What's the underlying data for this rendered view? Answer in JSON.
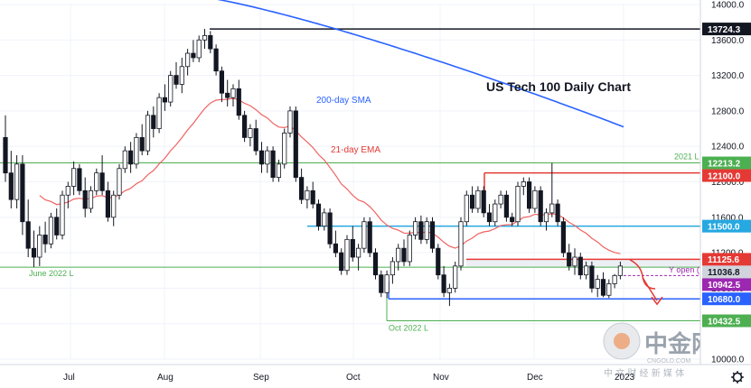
{
  "chart_data": {
    "type": "candlestick",
    "title": "US Tech 100 Daily Chart",
    "x_axis": {
      "month_labels": [
        "Jul",
        "Aug",
        "Sep",
        "Oct",
        "Nov",
        "Dec",
        "2023"
      ]
    },
    "y_axis": {
      "range": [
        10000,
        14000
      ],
      "tick_labels": [
        "14000.0",
        "13600.0",
        "13200.0",
        "12800.0",
        "12400.0",
        "12000.0",
        "11600.0",
        "11200.0",
        "10800.0",
        "10400.0",
        "10000.0"
      ]
    },
    "ohlc": [
      {
        "o": 12500,
        "h": 12750,
        "l": 12000,
        "c": 12100
      },
      {
        "o": 12100,
        "h": 12350,
        "l": 11700,
        "c": 11800
      },
      {
        "o": 11800,
        "h": 12300,
        "l": 11700,
        "c": 12200
      },
      {
        "o": 12200,
        "h": 12300,
        "l": 11400,
        "c": 11550
      },
      {
        "o": 11550,
        "h": 11800,
        "l": 11150,
        "c": 11250
      },
      {
        "o": 11250,
        "h": 11450,
        "l": 11037,
        "c": 11150
      },
      {
        "o": 11150,
        "h": 11500,
        "l": 11050,
        "c": 11400
      },
      {
        "o": 11400,
        "h": 11550,
        "l": 11200,
        "c": 11300
      },
      {
        "o": 11300,
        "h": 11650,
        "l": 11250,
        "c": 11600
      },
      {
        "o": 11600,
        "h": 11700,
        "l": 11350,
        "c": 11400
      },
      {
        "o": 11400,
        "h": 11900,
        "l": 11350,
        "c": 11850
      },
      {
        "o": 11850,
        "h": 12000,
        "l": 11700,
        "c": 11950
      },
      {
        "o": 11950,
        "h": 12230,
        "l": 11850,
        "c": 12150
      },
      {
        "o": 12150,
        "h": 12200,
        "l": 11850,
        "c": 11900
      },
      {
        "o": 11900,
        "h": 12050,
        "l": 11600,
        "c": 11700
      },
      {
        "o": 11700,
        "h": 11950,
        "l": 11650,
        "c": 11900
      },
      {
        "o": 11900,
        "h": 12150,
        "l": 11850,
        "c": 12100
      },
      {
        "o": 12100,
        "h": 12300,
        "l": 11850,
        "c": 11900
      },
      {
        "o": 11900,
        "h": 12000,
        "l": 11550,
        "c": 11600
      },
      {
        "o": 11600,
        "h": 11900,
        "l": 11500,
        "c": 11850
      },
      {
        "o": 11850,
        "h": 12200,
        "l": 11800,
        "c": 12150
      },
      {
        "o": 12150,
        "h": 12400,
        "l": 12100,
        "c": 12350
      },
      {
        "o": 12350,
        "h": 12450,
        "l": 12100,
        "c": 12200
      },
      {
        "o": 12200,
        "h": 12550,
        "l": 12150,
        "c": 12500
      },
      {
        "o": 12500,
        "h": 12650,
        "l": 12300,
        "c": 12350
      },
      {
        "o": 12350,
        "h": 12800,
        "l": 12300,
        "c": 12750
      },
      {
        "o": 12750,
        "h": 12850,
        "l": 12500,
        "c": 12600
      },
      {
        "o": 12600,
        "h": 13000,
        "l": 12550,
        "c": 12950
      },
      {
        "o": 12950,
        "h": 13100,
        "l": 12800,
        "c": 12900
      },
      {
        "o": 12900,
        "h": 13250,
        "l": 12850,
        "c": 13200
      },
      {
        "o": 13200,
        "h": 13350,
        "l": 13050,
        "c": 13100
      },
      {
        "o": 13100,
        "h": 13400,
        "l": 13000,
        "c": 13300
      },
      {
        "o": 13300,
        "h": 13500,
        "l": 13200,
        "c": 13450
      },
      {
        "o": 13450,
        "h": 13600,
        "l": 13350,
        "c": 13400
      },
      {
        "o": 13400,
        "h": 13650,
        "l": 13350,
        "c": 13600
      },
      {
        "o": 13600,
        "h": 13724,
        "l": 13500,
        "c": 13650
      },
      {
        "o": 13650,
        "h": 13700,
        "l": 13450,
        "c": 13500
      },
      {
        "o": 13500,
        "h": 13550,
        "l": 13200,
        "c": 13250
      },
      {
        "o": 13250,
        "h": 13300,
        "l": 12900,
        "c": 13000
      },
      {
        "o": 13000,
        "h": 13150,
        "l": 12850,
        "c": 12950
      },
      {
        "o": 12950,
        "h": 13100,
        "l": 12850,
        "c": 13050
      },
      {
        "o": 13050,
        "h": 13150,
        "l": 12700,
        "c": 12750
      },
      {
        "o": 12750,
        "h": 12800,
        "l": 12450,
        "c": 12500
      },
      {
        "o": 12500,
        "h": 12650,
        "l": 12400,
        "c": 12600
      },
      {
        "o": 12600,
        "h": 12700,
        "l": 12300,
        "c": 12350
      },
      {
        "o": 12350,
        "h": 12450,
        "l": 12100,
        "c": 12200
      },
      {
        "o": 12200,
        "h": 12400,
        "l": 12100,
        "c": 12350
      },
      {
        "o": 12350,
        "h": 12400,
        "l": 12000,
        "c": 12050
      },
      {
        "o": 12050,
        "h": 12250,
        "l": 12000,
        "c": 12200
      },
      {
        "o": 12200,
        "h": 12600,
        "l": 12150,
        "c": 12550
      },
      {
        "o": 12550,
        "h": 12850,
        "l": 12500,
        "c": 12800
      },
      {
        "o": 12800,
        "h": 12850,
        "l": 12000,
        "c": 12050
      },
      {
        "o": 12050,
        "h": 12150,
        "l": 11750,
        "c": 11800
      },
      {
        "o": 11800,
        "h": 11950,
        "l": 11700,
        "c": 11900
      },
      {
        "o": 11900,
        "h": 12000,
        "l": 11700,
        "c": 11750
      },
      {
        "o": 11750,
        "h": 11800,
        "l": 11450,
        "c": 11500
      },
      {
        "o": 11500,
        "h": 11700,
        "l": 11450,
        "c": 11650
      },
      {
        "o": 11650,
        "h": 11700,
        "l": 11250,
        "c": 11300
      },
      {
        "o": 11300,
        "h": 11450,
        "l": 11150,
        "c": 11200
      },
      {
        "o": 11200,
        "h": 11250,
        "l": 10950,
        "c": 11000
      },
      {
        "o": 11000,
        "h": 11400,
        "l": 10950,
        "c": 11350
      },
      {
        "o": 11350,
        "h": 11500,
        "l": 11100,
        "c": 11150
      },
      {
        "o": 11150,
        "h": 11300,
        "l": 11000,
        "c": 11250
      },
      {
        "o": 11250,
        "h": 11600,
        "l": 11200,
        "c": 11550
      },
      {
        "o": 11550,
        "h": 11600,
        "l": 11150,
        "c": 11200
      },
      {
        "o": 11200,
        "h": 11250,
        "l": 10900,
        "c": 10950
      },
      {
        "o": 10950,
        "h": 11000,
        "l": 10700,
        "c": 10750
      },
      {
        "o": 10750,
        "h": 11000,
        "l": 10690,
        "c": 10950
      },
      {
        "o": 10950,
        "h": 11150,
        "l": 10850,
        "c": 11100
      },
      {
        "o": 11100,
        "h": 11300,
        "l": 11000,
        "c": 11250
      },
      {
        "o": 11250,
        "h": 11350,
        "l": 11050,
        "c": 11100
      },
      {
        "o": 11100,
        "h": 11450,
        "l": 11050,
        "c": 11400
      },
      {
        "o": 11400,
        "h": 11600,
        "l": 11350,
        "c": 11550
      },
      {
        "o": 11550,
        "h": 11620,
        "l": 11300,
        "c": 11350
      },
      {
        "o": 11350,
        "h": 11600,
        "l": 11300,
        "c": 11550
      },
      {
        "o": 11550,
        "h": 11600,
        "l": 11200,
        "c": 11250
      },
      {
        "o": 11250,
        "h": 11300,
        "l": 10900,
        "c": 10950
      },
      {
        "o": 10950,
        "h": 11050,
        "l": 10700,
        "c": 10750
      },
      {
        "o": 10750,
        "h": 10850,
        "l": 10600,
        "c": 10800
      },
      {
        "o": 10800,
        "h": 11100,
        "l": 10750,
        "c": 11050
      },
      {
        "o": 11050,
        "h": 11600,
        "l": 11000,
        "c": 11550
      },
      {
        "o": 11550,
        "h": 11900,
        "l": 11500,
        "c": 11850
      },
      {
        "o": 11850,
        "h": 11950,
        "l": 11650,
        "c": 11700
      },
      {
        "o": 11700,
        "h": 11950,
        "l": 11650,
        "c": 11900
      },
      {
        "o": 11900,
        "h": 11950,
        "l": 11600,
        "c": 11650
      },
      {
        "o": 11650,
        "h": 11750,
        "l": 11500,
        "c": 11550
      },
      {
        "o": 11550,
        "h": 11800,
        "l": 11500,
        "c": 11750
      },
      {
        "o": 11750,
        "h": 11900,
        "l": 11700,
        "c": 11850
      },
      {
        "o": 11850,
        "h": 11900,
        "l": 11550,
        "c": 11600
      },
      {
        "o": 11600,
        "h": 11650,
        "l": 11500,
        "c": 11550
      },
      {
        "o": 11550,
        "h": 12000,
        "l": 11500,
        "c": 11950
      },
      {
        "o": 11950,
        "h": 12050,
        "l": 11850,
        "c": 12000
      },
      {
        "o": 12000,
        "h": 12050,
        "l": 11650,
        "c": 11700
      },
      {
        "o": 11700,
        "h": 11950,
        "l": 11650,
        "c": 11900
      },
      {
        "o": 11900,
        "h": 11950,
        "l": 11500,
        "c": 11550
      },
      {
        "o": 11550,
        "h": 11700,
        "l": 11450,
        "c": 11650
      },
      {
        "o": 11650,
        "h": 12213,
        "l": 11600,
        "c": 11750
      },
      {
        "o": 11750,
        "h": 11800,
        "l": 11500,
        "c": 11550
      },
      {
        "o": 11550,
        "h": 11600,
        "l": 11150,
        "c": 11200
      },
      {
        "o": 11200,
        "h": 11300,
        "l": 11000,
        "c": 11050
      },
      {
        "o": 11050,
        "h": 11250,
        "l": 10950,
        "c": 11150
      },
      {
        "o": 11150,
        "h": 11200,
        "l": 10900,
        "c": 10950
      },
      {
        "o": 10950,
        "h": 11100,
        "l": 10900,
        "c": 11050
      },
      {
        "o": 11050,
        "h": 11100,
        "l": 10750,
        "c": 10800
      },
      {
        "o": 10800,
        "h": 10950,
        "l": 10700,
        "c": 10900
      },
      {
        "o": 10900,
        "h": 10980,
        "l": 10700,
        "c": 10720
      },
      {
        "o": 10720,
        "h": 10900,
        "l": 10690,
        "c": 10850
      },
      {
        "o": 10850,
        "h": 10960,
        "l": 10800,
        "c": 10943
      },
      {
        "o": 10943,
        "h": 11100,
        "l": 10900,
        "c": 11050
      }
    ],
    "series": [
      {
        "name": "200-day SMA",
        "color": "#2962ff"
      },
      {
        "name": "21-day EMA",
        "color": "#f06262"
      }
    ],
    "levels": [
      {
        "value": 13724.3,
        "label": "13724.3"
      },
      {
        "value": 12213.2,
        "label": "12213.2",
        "note": "2021 L"
      },
      {
        "value": 12100.0,
        "label": "12100.0"
      },
      {
        "value": 11500.0,
        "label": "11500.0"
      },
      {
        "value": 11125.6,
        "label": "11125.6"
      },
      {
        "value": 11036.8,
        "label": "11036.8",
        "note": "June 2022 L"
      },
      {
        "value": 10942.5,
        "label": "10942.5"
      },
      {
        "value": 10680.0,
        "label": "10680.0"
      },
      {
        "value": 10432.5,
        "label": "10432.5",
        "note": "Oct 2022 L"
      }
    ],
    "annotations": [
      "Y open (r)"
    ]
  },
  "colors": {
    "bull": "#ffffff",
    "bear": "#131722",
    "black_level": "#131722",
    "green_level": "#4caf50",
    "red_level": "#e53935",
    "cyan_level": "#26a8e0",
    "blue_level": "#2962ff",
    "purple_label": "#9c27b0",
    "grey_label": "#d1d4dc"
  },
  "watermark": {
    "brand": "中金网",
    "domain": "CNGOLD.COM",
    "tagline": "中 文 财 经 新 媒 体"
  },
  "icons": [
    "gear-icon"
  ]
}
